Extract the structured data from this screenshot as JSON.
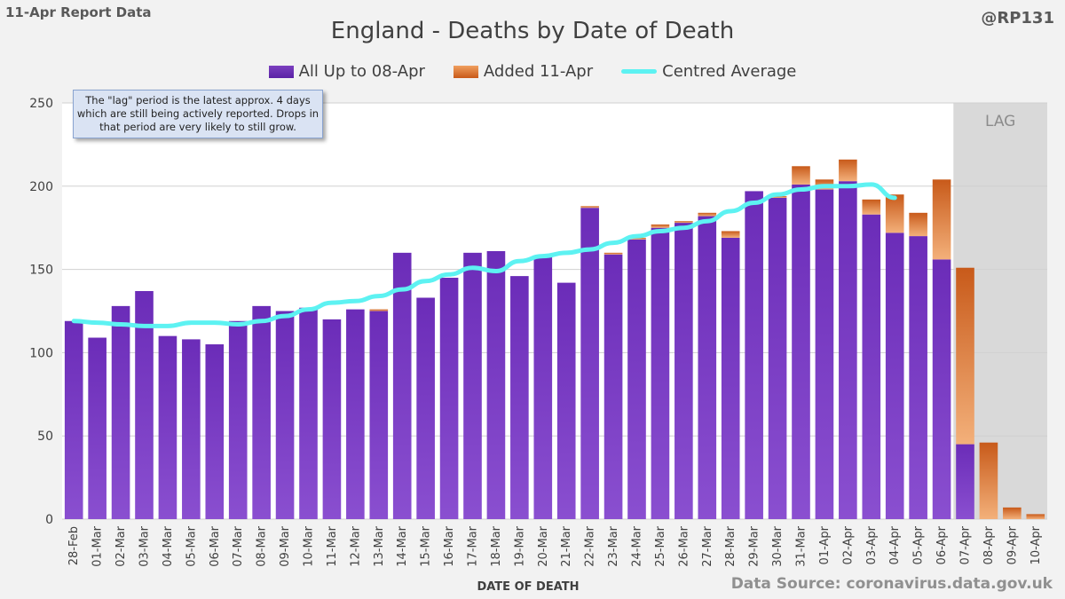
{
  "header": {
    "report_label": "11-Apr Report Data",
    "handle": "@RP131"
  },
  "annotation": {
    "text": "The \"lag\" period is the latest approx. 4 days which are still being actively reported. Drops in that period are very likely to still grow."
  },
  "source": "Data Source: coronavirus.data.gov.uk",
  "colors": {
    "purple": "#6a2fb5",
    "orange": "#d0692a",
    "average": "#5df2f2",
    "lag_shade": "#d9d9d9"
  },
  "chart_data": {
    "type": "bar",
    "title": "England - Deaths by Date of Death",
    "xlabel": "DATE OF DEATH",
    "ylabel": "",
    "ylim": [
      0,
      250
    ],
    "yticks": [
      0,
      50,
      100,
      150,
      200,
      250
    ],
    "grid": true,
    "legend_position": "top",
    "stacked": true,
    "lag_label": "LAG",
    "lag_categories": [
      "07-Apr",
      "08-Apr",
      "09-Apr",
      "10-Apr"
    ],
    "categories": [
      "28-Feb",
      "01-Mar",
      "02-Mar",
      "03-Mar",
      "04-Mar",
      "05-Mar",
      "06-Mar",
      "07-Mar",
      "08-Mar",
      "09-Mar",
      "10-Mar",
      "11-Mar",
      "12-Mar",
      "13-Mar",
      "14-Mar",
      "15-Mar",
      "16-Mar",
      "17-Mar",
      "18-Mar",
      "19-Mar",
      "20-Mar",
      "21-Mar",
      "22-Mar",
      "23-Mar",
      "24-Mar",
      "25-Mar",
      "26-Mar",
      "27-Mar",
      "28-Mar",
      "29-Mar",
      "30-Mar",
      "31-Mar",
      "01-Apr",
      "02-Apr",
      "03-Apr",
      "04-Apr",
      "05-Apr",
      "06-Apr",
      "07-Apr",
      "08-Apr",
      "09-Apr",
      "10-Apr"
    ],
    "series": [
      {
        "name": "All Up to 08-Apr",
        "kind": "bar",
        "values": [
          119,
          109,
          128,
          137,
          110,
          108,
          105,
          119,
          128,
          125,
          127,
          120,
          126,
          125,
          160,
          133,
          145,
          160,
          161,
          146,
          158,
          142,
          187,
          159,
          168,
          175,
          178,
          182,
          169,
          197,
          193,
          201,
          198,
          203,
          183,
          172,
          170,
          156,
          45,
          0,
          0,
          0
        ]
      },
      {
        "name": "Added 11-Apr",
        "kind": "bar",
        "values": [
          0,
          0,
          0,
          0,
          0,
          0,
          0,
          0,
          0,
          0,
          0,
          0,
          0,
          1,
          0,
          0,
          0,
          0,
          0,
          0,
          0,
          0,
          1,
          1,
          1,
          2,
          1,
          2,
          4,
          0,
          1,
          11,
          6,
          13,
          9,
          23,
          14,
          48,
          106,
          46,
          7,
          3
        ]
      },
      {
        "name": "Centred Average",
        "kind": "line",
        "values": [
          119,
          118,
          117,
          116,
          116,
          118,
          118,
          117,
          119,
          122,
          126,
          130,
          131,
          134,
          138,
          143,
          147,
          151,
          149,
          155,
          158,
          160,
          162,
          166,
          170,
          173,
          175,
          179,
          185,
          190,
          195,
          198,
          200,
          200,
          201,
          193,
          null,
          null,
          null,
          null,
          null,
          null
        ]
      }
    ]
  }
}
